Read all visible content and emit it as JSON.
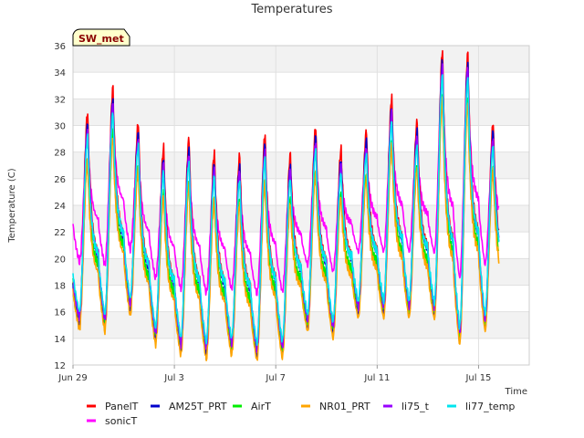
{
  "chart_data": {
    "type": "line",
    "title": "Temperatures",
    "site_label": "SW_met",
    "xlabel": "Time",
    "ylabel": "Temperature (C)",
    "ylim": [
      12,
      36
    ],
    "yticks": [
      12,
      14,
      16,
      18,
      20,
      22,
      24,
      26,
      28,
      30,
      32,
      34,
      36
    ],
    "xlim": [
      0,
      18
    ],
    "xticks": [
      {
        "value": 0,
        "label": "Jun 29"
      },
      {
        "value": 4,
        "label": "Jul 3"
      },
      {
        "value": 8,
        "label": "Jul 7"
      },
      {
        "value": 12,
        "label": "Jul 11"
      },
      {
        "value": 16,
        "label": "Jul 15"
      }
    ],
    "x_unit": "days since Jun 29",
    "grid": true,
    "legend_position": "bottom",
    "daily_extremes": {
      "day": [
        0.4,
        1.5,
        2.5,
        3.5,
        4.5,
        5.5,
        6.5,
        7.5,
        8.5,
        9.5,
        10.5,
        11.5,
        12.5,
        13.5,
        14.5,
        15.5,
        16.5
      ],
      "panel_max": [
        30.9,
        32.8,
        30.2,
        28.3,
        29.0,
        27.9,
        27.7,
        29.3,
        27.8,
        29.9,
        28.2,
        29.6,
        32.1,
        30.3,
        35.6,
        35.4,
        30.2
      ],
      "panel_min": [
        15.2,
        15.0,
        16.2,
        14.0,
        13.2,
        12.9,
        13.2,
        12.8,
        13.0,
        15.0,
        14.5,
        16.0,
        16.0,
        16.0,
        15.9,
        14.0,
        15.0
      ]
    },
    "series": [
      {
        "name": "PanelT",
        "color": "#ff0000",
        "max_offset": 0.0,
        "min_offset": 0.0
      },
      {
        "name": "AM25T_PRT",
        "color": "#0000cc",
        "max_offset": -0.8,
        "min_offset": -0.2
      },
      {
        "name": "AirT",
        "color": "#00ee00",
        "max_offset": -3.3,
        "min_offset": 0.2
      },
      {
        "name": "NR01_PRT",
        "color": "#ffa500",
        "max_offset": -3.6,
        "min_offset": -0.5
      },
      {
        "name": "li75_t",
        "color": "#9900ff",
        "max_offset": -1.2,
        "min_offset": 0.4
      },
      {
        "name": "li77_temp",
        "color": "#00e5ee",
        "max_offset": -1.8,
        "min_offset": 0.8
      },
      {
        "name": "sonicT",
        "color": "#ff00ff",
        "max_offset": -1.5,
        "min_offset": 4.5
      }
    ],
    "legend_rows": [
      [
        "PanelT",
        "AM25T_PRT",
        "AirT",
        "NR01_PRT",
        "li75_t",
        "li77_temp"
      ],
      [
        "sonicT"
      ]
    ],
    "data_end": 16.8
  }
}
